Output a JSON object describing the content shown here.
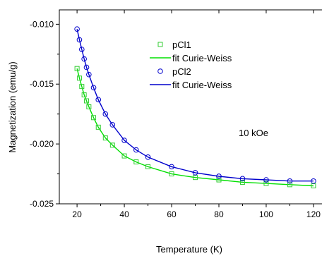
{
  "chart_data": {
    "type": "scatter",
    "xlabel": "Temperature (K)",
    "ylabel": "Magnetization (emu/g)",
    "xlim": [
      12.5,
      126
    ],
    "ylim": [
      -0.025,
      -0.0088
    ],
    "xticks": [
      20,
      40,
      60,
      80,
      100,
      120
    ],
    "xtick_labels": [
      "20",
      "40",
      "60",
      "80",
      "100",
      "120"
    ],
    "yticks": [
      -0.01,
      -0.015,
      -0.02,
      -0.025
    ],
    "ytick_labels": [
      "-0.010",
      "-0.015",
      "-0.020",
      "-0.025"
    ],
    "annotation": "10 kOe",
    "grid": false,
    "legend_position": "top-right",
    "series": [
      {
        "name": "pCl1",
        "kind": "markers",
        "marker": "square",
        "color": "#33cc33",
        "x": [
          20,
          21,
          22,
          23,
          24,
          25,
          27,
          29,
          32,
          35,
          40,
          45,
          50,
          60,
          70,
          80,
          90,
          100,
          110,
          120
        ],
        "y": [
          -0.0137,
          -0.0145,
          -0.0152,
          -0.0159,
          -0.0164,
          -0.0169,
          -0.0178,
          -0.0186,
          -0.0195,
          -0.0201,
          -0.021,
          -0.0215,
          -0.0219,
          -0.0225,
          -0.0228,
          -0.023,
          -0.0232,
          -0.0233,
          -0.0234,
          -0.0235
        ]
      },
      {
        "name": "fit Curie-Weiss",
        "kind": "line",
        "color": "#00e000",
        "x": [
          20,
          21,
          22,
          23,
          24,
          25,
          27,
          29,
          32,
          35,
          40,
          45,
          50,
          60,
          70,
          80,
          90,
          100,
          110,
          120
        ],
        "y": [
          -0.0137,
          -0.0145,
          -0.0152,
          -0.0159,
          -0.0164,
          -0.0169,
          -0.0178,
          -0.0186,
          -0.0195,
          -0.0201,
          -0.021,
          -0.0215,
          -0.0219,
          -0.0225,
          -0.0228,
          -0.023,
          -0.0232,
          -0.0233,
          -0.0234,
          -0.0235
        ]
      },
      {
        "name": "pCl2",
        "kind": "markers",
        "marker": "circle",
        "color": "#0000cc",
        "x": [
          20,
          21,
          22,
          23,
          24,
          25,
          27,
          29,
          32,
          35,
          40,
          45,
          50,
          60,
          70,
          80,
          90,
          100,
          110,
          120
        ],
        "y": [
          -0.0104,
          -0.0113,
          -0.0121,
          -0.0129,
          -0.0136,
          -0.0142,
          -0.0153,
          -0.0163,
          -0.0175,
          -0.0184,
          -0.0197,
          -0.0205,
          -0.0211,
          -0.0219,
          -0.0224,
          -0.0227,
          -0.0229,
          -0.023,
          -0.0231,
          -0.0231
        ]
      },
      {
        "name": "fit Curie-Weiss",
        "kind": "line",
        "color": "#0000cc",
        "x": [
          20,
          21,
          22,
          23,
          24,
          25,
          27,
          29,
          32,
          35,
          40,
          45,
          50,
          60,
          70,
          80,
          90,
          100,
          110,
          120
        ],
        "y": [
          -0.0104,
          -0.0113,
          -0.0121,
          -0.0129,
          -0.0136,
          -0.0142,
          -0.0153,
          -0.0163,
          -0.0175,
          -0.0184,
          -0.0197,
          -0.0205,
          -0.0211,
          -0.0219,
          -0.0224,
          -0.0227,
          -0.0229,
          -0.023,
          -0.0231,
          -0.0231
        ]
      }
    ]
  }
}
